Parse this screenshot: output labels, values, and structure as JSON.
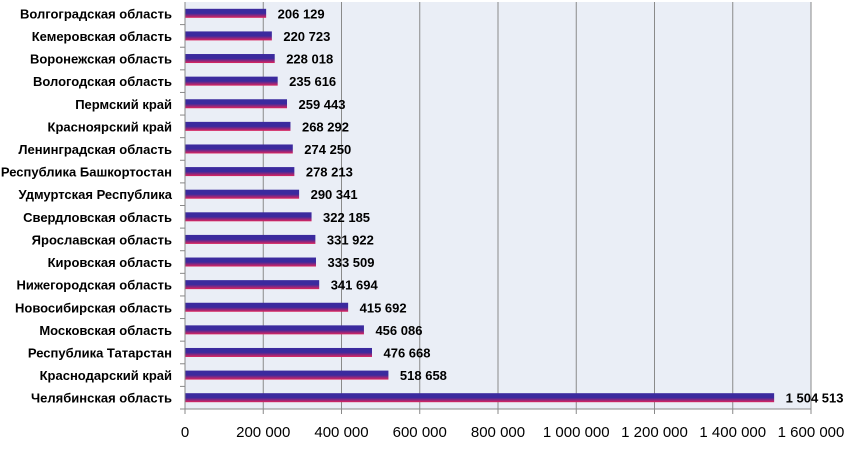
{
  "chart_data": {
    "type": "bar",
    "orientation": "horizontal",
    "categories": [
      "Волгоградская область",
      "Кемеровская область",
      "Воронежская область",
      "Вологодская область",
      "Пермский край",
      "Красноярский край",
      "Ленинградская область",
      "Республика Башкортостан",
      "Удмуртская Республика",
      "Свердловская область",
      "Ярославская область",
      "Кировская область",
      "Нижегородская область",
      "Новосибирская область",
      "Московская область",
      "Республика Татарстан",
      "Краснодарский край",
      "Челябинская область"
    ],
    "values": [
      206129,
      220723,
      228018,
      235616,
      259443,
      268292,
      274250,
      278213,
      290341,
      322185,
      331922,
      333509,
      341694,
      415692,
      456086,
      476668,
      518658,
      1504513
    ],
    "value_labels": [
      "206 129",
      "220 723",
      "228 018",
      "235 616",
      "259 443",
      "268 292",
      "274 250",
      "278 213",
      "290 341",
      "322 185",
      "331 922",
      "333 509",
      "341 694",
      "415 692",
      "456 086",
      "476 668",
      "518 658",
      "1 504 513"
    ],
    "xlim": [
      0,
      1600000
    ],
    "x_ticks": [
      0,
      200000,
      400000,
      600000,
      800000,
      1000000,
      1200000,
      1400000,
      1600000
    ],
    "x_tick_labels": [
      "0",
      "200 000",
      "400 000",
      "600 000",
      "800 000",
      "1 000 000",
      "1 200 000",
      "1 400 000",
      "1 600 000"
    ],
    "grid": "vertical",
    "legend": "none",
    "colors": {
      "bar_top": "#3b2a9e",
      "bar_bottom": "#e0245c",
      "plot_background": "#eaeef6",
      "gridline": "#8a8a8a",
      "axis": "#888888",
      "text": "#000000"
    }
  }
}
